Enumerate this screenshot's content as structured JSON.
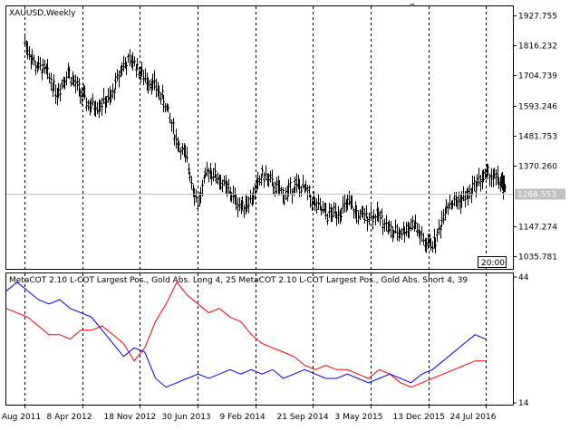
{
  "main": {
    "symbol_label": "XAUUSD,Weekly",
    "price_scale": [
      "1927.755",
      "1816.232",
      "1704.739",
      "1593.246",
      "1481.753",
      "1370.260",
      "1147.274",
      "1035.781"
    ],
    "current_price": "1268.553",
    "time_box": "20:00"
  },
  "indicator": {
    "title": "MetaCOT 2.10 L-COT Largest Pos., Gold Abs. Long 4, 25 MetaCOT 2.10 L-COT Largest Pos., Gold Abs. Short 4, 39",
    "scale_top": "44",
    "scale_bottom": "14"
  },
  "time_axis": [
    "28 Aug 2011",
    "8 Apr 2012",
    "18 Nov 2012",
    "30 Jun 2013",
    "9 Feb 2014",
    "21 Sep 2014",
    "3 May 2015",
    "13 Dec 2015",
    "24 Jul 2016"
  ],
  "colors": {
    "long_line": "#ff0000",
    "short_line": "#0000ff",
    "bars": "#000000",
    "grid": "#000000",
    "price_line": "#c0c0c0"
  },
  "chart_data": {
    "type": "line",
    "price_series": {
      "x": [
        "2011-08-28",
        "2011-10-09",
        "2011-11-20",
        "2012-01-01",
        "2012-02-12",
        "2012-03-25",
        "2012-05-06",
        "2012-06-17",
        "2012-07-29",
        "2012-09-09",
        "2012-10-21",
        "2012-12-02",
        "2013-01-13",
        "2013-02-24",
        "2013-04-07",
        "2013-05-19",
        "2013-06-30",
        "2013-08-11",
        "2013-09-22",
        "2013-11-03",
        "2013-12-15",
        "2014-01-26",
        "2014-03-09",
        "2014-04-20",
        "2014-06-01",
        "2014-07-13",
        "2014-08-24",
        "2014-10-05",
        "2014-11-16",
        "2014-12-28",
        "2015-02-08",
        "2015-03-22",
        "2015-05-03",
        "2015-06-14",
        "2015-07-26",
        "2015-09-06",
        "2015-10-18",
        "2015-11-29",
        "2016-01-10",
        "2016-02-21",
        "2016-04-03",
        "2016-05-15",
        "2016-06-26",
        "2016-08-07",
        "2016-09-18",
        "2016-10-09"
      ],
      "values": [
        1830,
        1740,
        1720,
        1640,
        1720,
        1650,
        1590,
        1600,
        1620,
        1740,
        1760,
        1700,
        1670,
        1600,
        1470,
        1390,
        1230,
        1360,
        1320,
        1270,
        1220,
        1250,
        1340,
        1300,
        1260,
        1300,
        1280,
        1220,
        1190,
        1200,
        1230,
        1180,
        1190,
        1180,
        1120,
        1130,
        1160,
        1080,
        1090,
        1230,
        1240,
        1260,
        1320,
        1340,
        1310,
        1268
      ]
    },
    "series": [
      {
        "values": [
          36,
          35,
          34,
          32,
          30,
          30,
          29,
          31,
          31,
          32,
          30,
          28,
          24,
          27,
          33,
          37,
          42,
          39,
          37,
          35,
          36,
          34,
          33,
          30,
          28,
          27,
          26,
          25,
          23,
          22,
          23,
          22,
          22,
          21,
          20,
          22,
          21,
          19,
          18,
          19,
          20,
          21,
          22,
          23,
          24,
          24
        ]
      },
      {
        "values": [
          40,
          42,
          40,
          38,
          37,
          38,
          36,
          35,
          34,
          31,
          28,
          25,
          27,
          26,
          20,
          18,
          19,
          20,
          21,
          20,
          21,
          22,
          21,
          22,
          21,
          22,
          20,
          21,
          22,
          21,
          20,
          20,
          21,
          20,
          19,
          20,
          21,
          20,
          19,
          21,
          22,
          24,
          26,
          28,
          30,
          29
        ]
      }
    ],
    "y_range_price": [
      990,
      1960
    ],
    "y_range_indicator": [
      14,
      44
    ],
    "grid": true
  }
}
